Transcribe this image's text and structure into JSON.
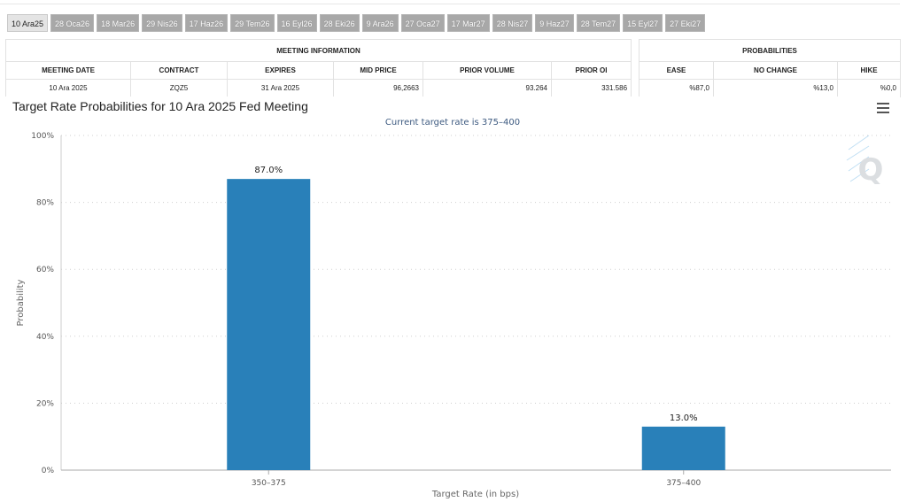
{
  "tabs": [
    "10 Ara25",
    "28 Oca26",
    "18 Mar26",
    "29 Nis26",
    "17 Haz26",
    "29 Tem26",
    "16 Eyl26",
    "28 Eki26",
    "9 Ara26",
    "27 Oca27",
    "17 Mar27",
    "28 Nis27",
    "9 Haz27",
    "28 Tem27",
    "15 Eyl27",
    "27 Eki27"
  ],
  "meeting_info": {
    "section_title": "MEETING INFORMATION",
    "headers": {
      "meeting_date": "MEETING DATE",
      "contract": "CONTRACT",
      "expires": "EXPIRES",
      "mid_price": "MID PRICE",
      "prior_volume": "PRIOR VOLUME",
      "prior_oi": "PRIOR OI"
    },
    "row": {
      "meeting_date": "10 Ara 2025",
      "contract": "ZQZ5",
      "expires": "31 Ara 2025",
      "mid_price": "96,2663",
      "prior_volume": "93.264",
      "prior_oi": "331.586"
    }
  },
  "probabilities": {
    "section_title": "PROBABILITIES",
    "headers": {
      "ease": "EASE",
      "no_change": "NO CHANGE",
      "hike": "HIKE"
    },
    "row": {
      "ease": "%87,0",
      "no_change": "%13,0",
      "hike": "%0,0"
    }
  },
  "colors": {
    "bar": "#2980b9",
    "accent": "#3d5a80"
  },
  "chart_data": {
    "type": "bar",
    "title": "Target Rate Probabilities for 10 Ara 2025 Fed Meeting",
    "subtitle": "Current target rate is 375–400",
    "categories": [
      "350–375",
      "375–400"
    ],
    "values": [
      87.0,
      13.0
    ],
    "data_labels": [
      "87.0%",
      "13.0%"
    ],
    "xlabel": "Target Rate (in bps)",
    "ylabel": "Probability",
    "ylim": [
      0,
      100
    ],
    "yticks": [
      0,
      20,
      40,
      60,
      80,
      100
    ],
    "ytick_labels": [
      "0%",
      "20%",
      "40%",
      "60%",
      "80%",
      "100%"
    ],
    "grid": true,
    "legend": "none"
  }
}
